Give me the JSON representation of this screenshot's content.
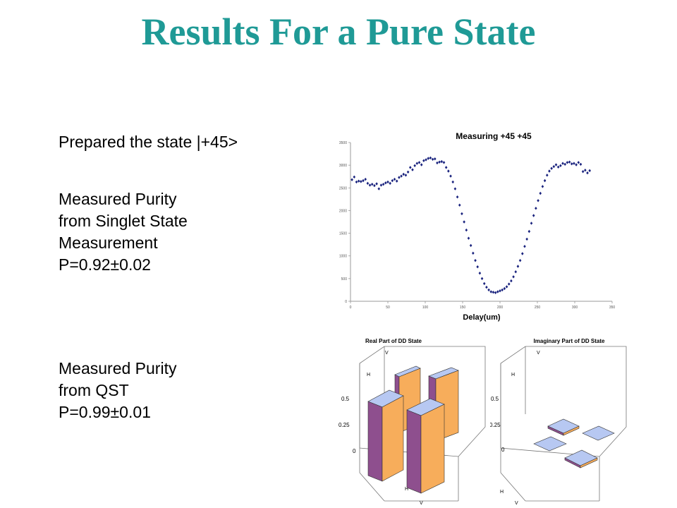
{
  "slide": {
    "title": "Results For a Pure State",
    "prepared": "Prepared the state |+45>",
    "block1": [
      "Measured Purity",
      "from Singlet State",
      "Measurement",
      "P=0.92±0.02"
    ],
    "block2": [
      "Measured Purity",
      "from QST",
      "P=0.99±0.01"
    ]
  },
  "colors": {
    "title": "#1f9a96",
    "points": "#1a237e",
    "bar_top": "#b7c8f2",
    "bar_front": "#8e4f8e",
    "bar_side": "#f7ad5b"
  },
  "chart_data": [
    {
      "type": "scatter",
      "title": "Measuring +45 +45",
      "xlabel": "Delay(um)",
      "ylabel": "",
      "xlim": [
        0,
        350
      ],
      "ylim": [
        0,
        3500
      ],
      "xticks": [
        0,
        50,
        100,
        150,
        200,
        250,
        300,
        350
      ],
      "yticks": [
        0,
        500,
        1000,
        1500,
        2000,
        2500,
        3000,
        3500
      ],
      "x": [
        2,
        5,
        8,
        11,
        14,
        17,
        20,
        23,
        26,
        29,
        32,
        35,
        38,
        41,
        44,
        47,
        50,
        53,
        56,
        59,
        62,
        65,
        68,
        71,
        74,
        77,
        80,
        83,
        86,
        89,
        92,
        95,
        98,
        101,
        104,
        107,
        110,
        113,
        116,
        119,
        122,
        125,
        128,
        131,
        134,
        137,
        140,
        143,
        146,
        149,
        152,
        155,
        158,
        161,
        164,
        167,
        170,
        173,
        176,
        179,
        182,
        185,
        188,
        191,
        194,
        197,
        200,
        203,
        206,
        209,
        212,
        215,
        218,
        221,
        224,
        227,
        230,
        233,
        236,
        239,
        242,
        245,
        248,
        251,
        254,
        257,
        260,
        263,
        266,
        269,
        272,
        275,
        278,
        281,
        284,
        287,
        290,
        293,
        296,
        299,
        302,
        305,
        308,
        311,
        314,
        317,
        320
      ],
      "y": [
        2680,
        2740,
        2630,
        2650,
        2640,
        2660,
        2690,
        2600,
        2560,
        2580,
        2550,
        2590,
        2480,
        2560,
        2580,
        2610,
        2630,
        2600,
        2660,
        2690,
        2650,
        2730,
        2760,
        2800,
        2780,
        2850,
        2950,
        2900,
        2990,
        3040,
        3060,
        3010,
        3100,
        3120,
        3150,
        3160,
        3130,
        3140,
        3050,
        3070,
        3080,
        3060,
        2950,
        2870,
        2760,
        2630,
        2480,
        2300,
        2120,
        1930,
        1750,
        1570,
        1390,
        1230,
        1060,
        900,
        760,
        620,
        500,
        390,
        310,
        250,
        210,
        200,
        190,
        210,
        230,
        250,
        280,
        320,
        380,
        450,
        540,
        650,
        770,
        900,
        1050,
        1210,
        1370,
        1540,
        1720,
        1890,
        2050,
        2220,
        2380,
        2530,
        2660,
        2780,
        2870,
        2930,
        2970,
        3010,
        2960,
        2990,
        3040,
        3020,
        3060,
        3070,
        3030,
        3040,
        3010,
        3060,
        3020,
        2860,
        2890,
        2830,
        2880
      ]
    },
    {
      "type": "bar3d",
      "title": "Real Part of DD State",
      "row_labels": [
        "H",
        "V"
      ],
      "col_labels": [
        "H",
        "V"
      ],
      "zticks": [
        "0",
        "0.25",
        "0.5"
      ],
      "zlim": [
        0,
        0.5
      ],
      "values": [
        [
          0.5,
          0.5
        ],
        [
          0.5,
          0.5
        ]
      ]
    },
    {
      "type": "bar3d",
      "title": "Imaginary Part of DD State",
      "row_labels": [
        "H",
        "V"
      ],
      "col_labels": [
        "H",
        "V"
      ],
      "zticks": [
        "0",
        "0.25",
        "0.5"
      ],
      "zlim": [
        0,
        0.5
      ],
      "values": [
        [
          0.0,
          0.005
        ],
        [
          -0.005,
          0.005
        ]
      ]
    }
  ]
}
